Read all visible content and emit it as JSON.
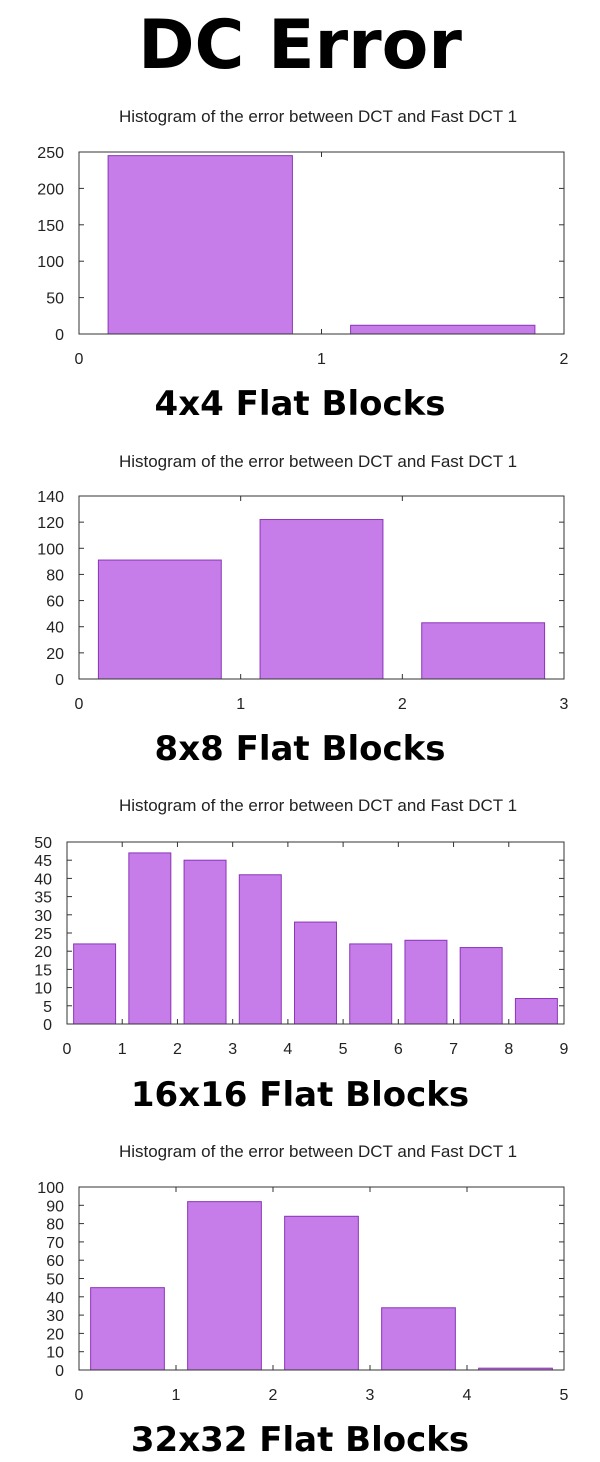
{
  "page_title": "DC Error",
  "style": {
    "bar_fill": "#c77de9",
    "bar_stroke": "#8a35b8"
  },
  "chart_data": [
    {
      "type": "bar",
      "title": "Histogram of the error between DCT and Fast DCT 1",
      "caption": "4x4 Flat Blocks",
      "xlim": [
        0,
        2
      ],
      "ylim": [
        0,
        250
      ],
      "xticks": [
        0,
        1,
        2
      ],
      "yticks": [
        0,
        50,
        100,
        150,
        200,
        250
      ],
      "categories": [
        0,
        1
      ],
      "values": [
        245,
        12
      ]
    },
    {
      "type": "bar",
      "title": "Histogram of the error between DCT and Fast DCT 1",
      "caption": "8x8 Flat Blocks",
      "xlim": [
        0,
        3
      ],
      "ylim": [
        0,
        140
      ],
      "xticks": [
        0,
        1,
        2,
        3
      ],
      "yticks": [
        0,
        20,
        40,
        60,
        80,
        100,
        120,
        140
      ],
      "categories": [
        0,
        1,
        2
      ],
      "values": [
        91,
        122,
        43
      ]
    },
    {
      "type": "bar",
      "title": "Histogram of the error between DCT and Fast DCT 1",
      "caption": "16x16 Flat Blocks",
      "xlim": [
        0,
        9
      ],
      "ylim": [
        0,
        50
      ],
      "xticks": [
        0,
        1,
        2,
        3,
        4,
        5,
        6,
        7,
        8,
        9
      ],
      "yticks": [
        0,
        5,
        10,
        15,
        20,
        25,
        30,
        35,
        40,
        45,
        50
      ],
      "categories": [
        0,
        1,
        2,
        3,
        4,
        5,
        6,
        7,
        8
      ],
      "values": [
        22,
        47,
        45,
        41,
        28,
        22,
        23,
        21,
        7
      ]
    },
    {
      "type": "bar",
      "title": "Histogram of the error between DCT and Fast DCT 1",
      "caption": "32x32 Flat Blocks",
      "xlim": [
        0,
        5
      ],
      "ylim": [
        0,
        100
      ],
      "xticks": [
        0,
        1,
        2,
        3,
        4,
        5
      ],
      "yticks": [
        0,
        10,
        20,
        30,
        40,
        50,
        60,
        70,
        80,
        90,
        100
      ],
      "categories": [
        0,
        1,
        2,
        3,
        4
      ],
      "values": [
        45,
        92,
        84,
        34,
        1
      ]
    }
  ]
}
